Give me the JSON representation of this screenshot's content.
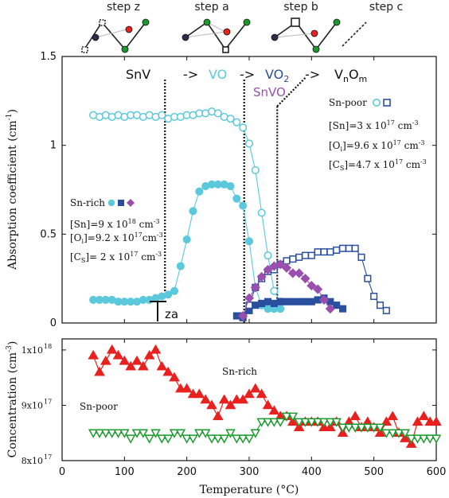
{
  "steps": {
    "labels": [
      "step z",
      "step a",
      "step b",
      "step c"
    ]
  },
  "colors": {
    "cyan": "#5bc8dc",
    "blue": "#2a4f9e",
    "purple": "#9a4fae",
    "red": "#e8201e",
    "green": "#1a9a2c",
    "dark": "#2a2f48"
  },
  "annotations": {
    "snv": "SnV",
    "arrow1": "->",
    "vo": "VO",
    "arrow2": "->",
    "vo2": "VO",
    "vo2_sub": "2",
    "arrow3": "->",
    "vnom_v": "V",
    "vnom_n": "n",
    "vnom_o": "O",
    "vnom_m": "m",
    "snvo": "SnVO",
    "tza": "T",
    "tza_sub": "za",
    "sn_rich_curve_label": "Sn-rich",
    "sn_poor_curve_label": "Sn-poor"
  },
  "legend_rich": {
    "title": "Sn-rich",
    "sn_base": "[Sn]=9 x 10",
    "sn_exp": "18",
    "sn_unit": " cm",
    "sn_unit_exp": "-3",
    "oi_a": "[O",
    "oi_sub": "i",
    "oi_b": "]=9.2 x 10",
    "oi_exp": "17",
    "oi_unit": "cm",
    "oi_unit_exp": "-3",
    "cs_a": "[C",
    "cs_sub": "S",
    "cs_b": "]= 2 x 10",
    "cs_exp": "17",
    "cs_unit": " cm",
    "cs_unit_exp": "-3"
  },
  "legend_poor": {
    "title": "Sn-poor",
    "sn_base": "[Sn]=3 x 10",
    "sn_exp": "17",
    "sn_unit": " cm",
    "sn_unit_exp": "-3",
    "oi_a": "[O",
    "oi_sub": "i",
    "oi_b": "]=9.6 x 10",
    "oi_exp": "17",
    "oi_unit": " cm",
    "oi_unit_exp": "-3",
    "cs_a": "[C",
    "cs_sub": "S",
    "cs_b": "]=4.7 x 10",
    "cs_exp": "17",
    "cs_unit": " cm",
    "cs_unit_exp": "-3"
  },
  "chart_data": [
    {
      "type": "scatter",
      "ylabel": "Absorption coefficient  (cm",
      "ylabel_exp": "-1",
      "ylabel_close": ")",
      "xlim": [
        0,
        600
      ],
      "ylim": [
        0,
        1.5
      ],
      "xticks": [
        0,
        100,
        200,
        300,
        400,
        500,
        600
      ],
      "yticks": [
        0,
        0.5,
        1,
        1.5
      ],
      "ytick_labels": [
        "0",
        "0.5",
        "1",
        "1.5"
      ],
      "vlines": [
        165,
        292,
        345
      ],
      "series": [
        {
          "key": "rich_cyan",
          "color": "cyan",
          "marker": "circle",
          "filled": true,
          "x": [
            50,
            60,
            70,
            80,
            90,
            100,
            110,
            120,
            130,
            140,
            150,
            160,
            170,
            180,
            190,
            200,
            210,
            220,
            230,
            240,
            250,
            260,
            270,
            280,
            290,
            300,
            310,
            320,
            330,
            340,
            350
          ],
          "y": [
            0.13,
            0.13,
            0.13,
            0.13,
            0.12,
            0.12,
            0.12,
            0.12,
            0.13,
            0.13,
            0.14,
            0.15,
            0.16,
            0.18,
            0.32,
            0.47,
            0.63,
            0.74,
            0.77,
            0.78,
            0.78,
            0.78,
            0.77,
            0.7,
            0.66,
            0.46,
            0.2,
            0.1,
            0.08,
            0.08,
            0.08
          ]
        },
        {
          "key": "poor_cyan",
          "color": "cyan",
          "marker": "circle",
          "filled": false,
          "x": [
            50,
            60,
            70,
            80,
            90,
            100,
            110,
            120,
            130,
            140,
            150,
            160,
            170,
            180,
            190,
            200,
            210,
            220,
            230,
            240,
            250,
            260,
            270,
            280,
            290,
            300,
            310,
            320,
            330,
            340,
            350
          ],
          "y": [
            1.17,
            1.16,
            1.17,
            1.16,
            1.17,
            1.16,
            1.17,
            1.17,
            1.16,
            1.17,
            1.16,
            1.17,
            1.15,
            1.16,
            1.16,
            1.17,
            1.17,
            1.18,
            1.18,
            1.19,
            1.18,
            1.16,
            1.15,
            1.13,
            1.1,
            1.01,
            0.86,
            0.62,
            0.38,
            0.18,
            0.12
          ]
        },
        {
          "key": "rich_blue",
          "color": "blue",
          "marker": "square",
          "filled": true,
          "x": [
            280,
            290,
            300,
            310,
            320,
            330,
            340,
            350,
            360,
            370,
            380,
            390,
            400,
            410,
            420,
            430,
            440,
            450
          ],
          "y": [
            0.04,
            0.03,
            0.07,
            0.1,
            0.11,
            0.12,
            0.11,
            0.12,
            0.12,
            0.12,
            0.12,
            0.12,
            0.12,
            0.13,
            0.14,
            0.12,
            0.1,
            0.08
          ]
        },
        {
          "key": "poor_blue",
          "color": "blue",
          "marker": "square",
          "filled": false,
          "x": [
            290,
            300,
            310,
            320,
            330,
            340,
            350,
            360,
            370,
            380,
            390,
            400,
            410,
            420,
            430,
            440,
            450,
            460,
            470,
            480,
            490,
            500,
            510,
            520
          ],
          "y": [
            0.04,
            0.1,
            0.2,
            0.25,
            0.29,
            0.3,
            0.33,
            0.35,
            0.36,
            0.37,
            0.38,
            0.38,
            0.4,
            0.4,
            0.4,
            0.41,
            0.42,
            0.42,
            0.42,
            0.37,
            0.25,
            0.15,
            0.1,
            0.07
          ]
        },
        {
          "key": "rich_purple",
          "color": "purple",
          "marker": "diamond",
          "filled": true,
          "x": [
            290,
            300,
            310,
            320,
            330,
            340,
            350,
            360,
            370,
            380,
            390,
            400,
            410,
            420,
            430
          ],
          "y": [
            0.04,
            0.14,
            0.2,
            0.26,
            0.3,
            0.32,
            0.33,
            0.31,
            0.28,
            0.28,
            0.25,
            0.21,
            0.19,
            0.13,
            0.08
          ]
        }
      ]
    },
    {
      "type": "scatter",
      "xlabel": "Temperature (°C)",
      "ylabel": "Concentration (cm",
      "ylabel_exp": "-3",
      "ylabel_close": ")",
      "xlim": [
        0,
        600
      ],
      "xticks": [
        0,
        100,
        200,
        300,
        400,
        500,
        600
      ],
      "xtick_labels": [
        "0",
        "100",
        "200",
        "300",
        "400",
        "500",
        "600"
      ],
      "ylim": [
        8.0,
        10.2
      ],
      "ytick_values": [
        8,
        9,
        10
      ],
      "ytick_bases": [
        "8x10",
        "9x10",
        "1x10"
      ],
      "ytick_exps": [
        "17",
        "17",
        "18"
      ],
      "series": [
        {
          "key": "sn_rich",
          "color": "red",
          "marker": "triangle-up",
          "x": [
            50,
            60,
            70,
            80,
            90,
            100,
            110,
            120,
            130,
            140,
            150,
            160,
            170,
            180,
            190,
            200,
            210,
            220,
            230,
            240,
            250,
            260,
            270,
            280,
            290,
            300,
            310,
            320,
            330,
            340,
            350,
            360,
            370,
            380,
            390,
            400,
            410,
            420,
            430,
            440,
            450,
            460,
            470,
            480,
            490,
            500,
            510,
            520,
            530,
            540,
            550,
            560,
            570,
            580,
            590,
            600
          ],
          "y": [
            9.9,
            9.6,
            9.8,
            10.0,
            9.9,
            9.8,
            9.7,
            9.8,
            9.7,
            9.9,
            10.0,
            9.7,
            9.6,
            9.5,
            9.3,
            9.3,
            9.2,
            9.2,
            9.1,
            9.0,
            8.8,
            9.1,
            9.0,
            9.1,
            9.1,
            9.2,
            9.3,
            9.2,
            9.0,
            8.9,
            8.8,
            8.8,
            8.7,
            8.6,
            8.7,
            8.7,
            8.7,
            8.6,
            8.6,
            8.7,
            8.5,
            8.7,
            8.8,
            8.6,
            8.7,
            8.6,
            8.5,
            8.7,
            8.8,
            8.5,
            8.4,
            8.3,
            8.7,
            8.8,
            8.7,
            8.7
          ]
        },
        {
          "key": "sn_poor",
          "color": "green",
          "marker": "triangle-down",
          "x": [
            50,
            60,
            70,
            80,
            90,
            100,
            110,
            120,
            130,
            140,
            150,
            160,
            170,
            180,
            190,
            200,
            210,
            220,
            230,
            240,
            250,
            260,
            270,
            280,
            290,
            300,
            310,
            320,
            330,
            340,
            350,
            360,
            370,
            380,
            390,
            400,
            410,
            420,
            430,
            440,
            450,
            460,
            470,
            480,
            490,
            500,
            510,
            520,
            530,
            540,
            550,
            560,
            570,
            580,
            590,
            600
          ],
          "y": [
            8.5,
            8.5,
            8.5,
            8.5,
            8.5,
            8.5,
            8.4,
            8.5,
            8.5,
            8.4,
            8.5,
            8.4,
            8.4,
            8.5,
            8.5,
            8.4,
            8.4,
            8.5,
            8.5,
            8.4,
            8.4,
            8.4,
            8.5,
            8.4,
            8.4,
            8.4,
            8.5,
            8.7,
            8.7,
            8.7,
            8.7,
            8.8,
            8.8,
            8.7,
            8.7,
            8.7,
            8.7,
            8.7,
            8.7,
            8.7,
            8.6,
            8.6,
            8.6,
            8.6,
            8.6,
            8.6,
            8.6,
            8.5,
            8.5,
            8.5,
            8.5,
            8.4,
            8.4,
            8.4,
            8.4,
            8.4
          ]
        }
      ]
    }
  ]
}
